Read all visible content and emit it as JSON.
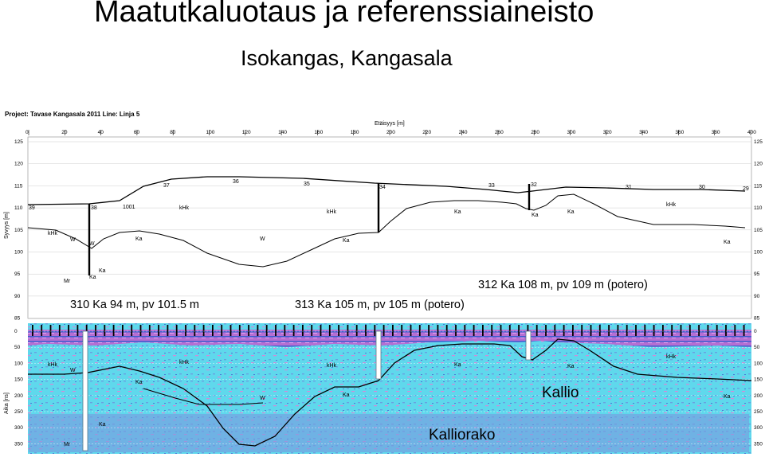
{
  "title": "Maatutkaluotaus ja referenssiaineisto",
  "subtitle": "Isokangas, Kangasala",
  "project_header": "Project: Tavase Kangasala 2011  Line: Linja 5",
  "distance_axis": {
    "label": "Etäisyys [m]",
    "ticks": [
      "0",
      "20",
      "40",
      "60",
      "80",
      "100",
      "120",
      "140",
      "160",
      "180",
      "200",
      "220",
      "240",
      "260",
      "280",
      "300",
      "320",
      "340",
      "360",
      "380",
      "400"
    ]
  },
  "elevation_axis": {
    "label": "Syvyys [m]",
    "ticks": [
      "125",
      "120",
      "115",
      "110",
      "105",
      "100",
      "95",
      "90",
      "85"
    ]
  },
  "time_axis": {
    "label": "Aika [ns]",
    "ticks": [
      "0",
      "50",
      "100",
      "150",
      "200",
      "250",
      "300",
      "350"
    ]
  },
  "point_labels": [
    "37",
    "36",
    "35",
    "34",
    "33",
    "32",
    "31",
    "30",
    "29",
    "39",
    "38",
    "1001"
  ],
  "soil_labels": {
    "khk": "kHk",
    "ka": "Ka",
    "w": "W",
    "mr": "Mr"
  },
  "callouts": {
    "b310": "310 Ka 94 m, pv 101.5 m",
    "b313": "313 Ka 105 m, pv 105 m (potero)",
    "b312": "312 Ka 108 m, pv 109 m (potero)",
    "bedrock": "Kallio",
    "bedrock_surface": "Kalliorako"
  },
  "colors": {
    "radar_bg": "#5fd8ec",
    "radar_pink": "#c070c8",
    "radar_blue": "#4068d8",
    "borehole": "#ffffff"
  }
}
